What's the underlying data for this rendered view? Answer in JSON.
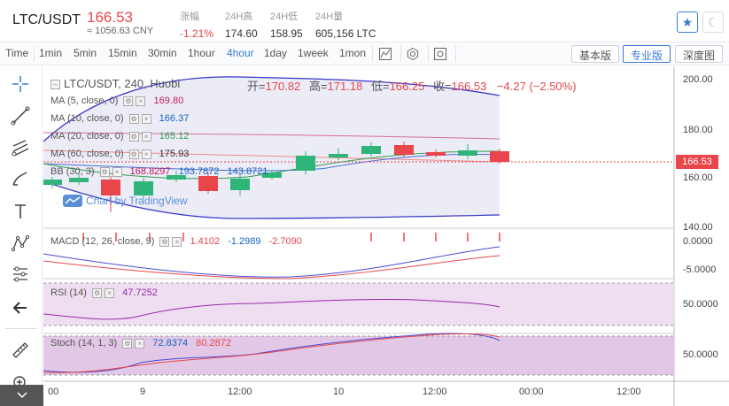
{
  "header": {
    "pair": "LTC/USDT",
    "price": "166.53",
    "cny": "≈ 1056.63 CNY",
    "stats": [
      {
        "label": "涨幅",
        "value": "-1.21%",
        "red": true
      },
      {
        "label": "24H高",
        "value": "174.60"
      },
      {
        "label": "24H低",
        "value": "158.95"
      },
      {
        "label": "24H量",
        "value": "605,156 LTC"
      }
    ]
  },
  "toolbar": {
    "intervals": [
      "Time",
      "1min",
      "5min",
      "15min",
      "30min",
      "1hour",
      "4hour",
      "1day",
      "1week",
      "1mon"
    ],
    "active_interval": "4hour",
    "buttons": [
      "基本版",
      "专业版",
      "深度图"
    ],
    "active_button": "专业版"
  },
  "chart": {
    "ohlc": {
      "symbol": "LTC/USDT, 240, Huobi",
      "open_label": "开=",
      "open": "170.82",
      "high_label": "高=",
      "high": "171.18",
      "low_label": "低=",
      "low": "166.25",
      "close_label": "收=",
      "close": "166.53",
      "change": "−4.27 (−2.50%)"
    },
    "indicators": {
      "ma5": {
        "label": "MA (5, close, 0)",
        "value": "169.80",
        "color": "#c2185b"
      },
      "ma10": {
        "label": "MA (10, close, 0)",
        "value": "166.37",
        "color": "#1565c0"
      },
      "ma20": {
        "label": "MA (20, close, 0)",
        "value": "165.12",
        "color": "#2e9e4f"
      },
      "ma60": {
        "label": "MA (60, close, 0)",
        "value": "175.93",
        "color": "#333"
      },
      "bb": {
        "label": "BB (30, 3)",
        "v1": "168.8297",
        "v2": "193.7872",
        "v3": "143.8721"
      },
      "macd": {
        "label": "MACD (12, 26, close, 9)",
        "v1": "1.4102",
        "v2": "-1.2989",
        "v3": "-2.7090"
      },
      "rsi": {
        "label": "RSI (14)",
        "value": "47.7252"
      },
      "stoch": {
        "label": "Stoch (14, 1, 3)",
        "v1": "72.8374",
        "v2": "80.2872"
      }
    },
    "watermark": "Chart by TradingView",
    "last_price": "166.53",
    "y_ticks_main": [
      "200.00",
      "180.00",
      "160.00",
      "140.00"
    ],
    "y_ticks_macd": [
      "0.0000",
      "-5.0000"
    ],
    "y_tick_rsi": "50.0000",
    "y_tick_stoch": "50.0000",
    "x_ticks": [
      "00",
      "9",
      "12:00",
      "10",
      "12:00",
      "00:00",
      "12:00"
    ],
    "colors": {
      "up": "#2fb47a",
      "down": "#e8464a",
      "accent": "#3a7bd5"
    }
  }
}
